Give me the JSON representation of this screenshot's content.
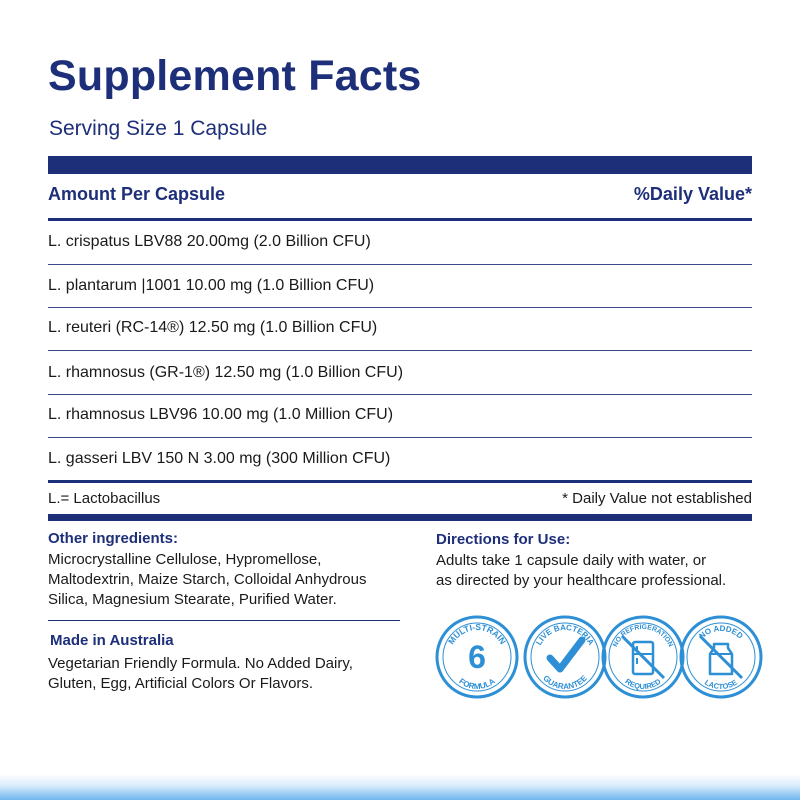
{
  "header": {
    "title": "Supplement Facts",
    "serving": "Serving Size 1 Capsule"
  },
  "table": {
    "col_left": "Amount Per Capsule",
    "col_right": "%Daily Value*",
    "rows": [
      "L. crispatus LBV88 20.00mg (2.0 Billion CFU)",
      "L. plantarum |1001 10.00 mg (1.0 Billion CFU)",
      "L. reuteri (RC-14®)  12.50 mg (1.0 Billion CFU)",
      "L. rhamnosus (GR-1®) 12.50 mg (1.0 Billion CFU)",
      "L. rhamnosus LBV96 10.00 mg (1.0 Million CFU)",
      "L. gasseri LBV 150 N 3.00 mg (300 Million CFU)"
    ],
    "footnote_left": "L.= Lactobacillus",
    "footnote_right": "* Daily Value not established"
  },
  "other": {
    "heading": "Other ingredients:",
    "lines": [
      "Microcrystalline Cellulose, Hypromellose,",
      "Maltodextrin, Maize Starch, Colloidal Anhydrous",
      "Silica, Magnesium Stearate, Purified Water."
    ]
  },
  "made_in": {
    "heading": "Made in Australia",
    "lines": [
      "Vegetarian Friendly Formula. No Added Dairy,",
      "Gluten, Egg, Artificial Colors Or Flavors."
    ]
  },
  "directions": {
    "heading": "Directions for Use:",
    "lines": [
      "Adults take 1 capsule daily with water, or",
      "as directed by your healthcare professional."
    ]
  },
  "badges": [
    {
      "icon": "multi-strain-badge-icon",
      "top": "MULTI-STRAIN",
      "center": "6",
      "bottom": "FORMULA"
    },
    {
      "icon": "live-bacteria-badge-icon",
      "top": "LIVE BACTERIA",
      "bottom": "GUARANTEE"
    },
    {
      "icon": "no-refrigeration-badge-icon",
      "top": "NO REFRIGERATION",
      "bottom": "REQUIRED"
    },
    {
      "icon": "no-added-lactose-badge-icon",
      "top": "NO ADDED",
      "bottom": "LACTOSE"
    }
  ],
  "colors": {
    "navy": "#1e2f7a",
    "badge_blue": "#2d8fd5"
  }
}
